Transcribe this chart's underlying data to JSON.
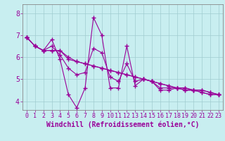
{
  "title": "",
  "xlabel": "Windchill (Refroidissement éolien,°C)",
  "ylabel": "",
  "bg_color": "#c8eef0",
  "grid_color": "#a0ccd0",
  "line_color": "#990099",
  "spine_color": "#888888",
  "xlim": [
    -0.5,
    23.5
  ],
  "ylim": [
    3.6,
    8.4
  ],
  "xticks": [
    0,
    1,
    2,
    3,
    4,
    5,
    6,
    7,
    8,
    9,
    10,
    11,
    12,
    13,
    14,
    15,
    16,
    17,
    18,
    19,
    20,
    21,
    22,
    23
  ],
  "yticks": [
    4,
    5,
    6,
    7,
    8
  ],
  "series": [
    [
      6.9,
      6.5,
      6.3,
      6.8,
      5.9,
      4.3,
      3.7,
      4.6,
      7.8,
      7.0,
      4.6,
      4.6,
      6.5,
      4.7,
      5.0,
      4.9,
      4.5,
      4.5,
      4.6,
      4.5,
      4.5,
      4.4,
      4.3,
      4.3
    ],
    [
      6.9,
      6.5,
      6.3,
      6.3,
      6.3,
      6.0,
      5.8,
      5.7,
      5.6,
      5.5,
      5.4,
      5.3,
      5.2,
      5.1,
      5.0,
      4.9,
      4.8,
      4.7,
      4.6,
      4.6,
      4.5,
      4.5,
      4.4,
      4.3
    ],
    [
      6.9,
      6.5,
      6.3,
      6.5,
      6.1,
      5.5,
      5.2,
      5.3,
      6.4,
      6.2,
      5.1,
      4.9,
      5.7,
      4.9,
      5.0,
      4.9,
      4.6,
      4.6,
      4.6,
      4.5,
      4.5,
      4.4,
      4.3,
      4.3
    ],
    [
      6.9,
      6.5,
      6.3,
      6.3,
      6.3,
      5.9,
      5.8,
      5.7,
      5.6,
      5.5,
      5.4,
      5.3,
      5.2,
      5.1,
      5.0,
      4.9,
      4.8,
      4.7,
      4.6,
      4.6,
      4.5,
      4.5,
      4.4,
      4.3
    ]
  ],
  "marker": "+",
  "markersize": 4,
  "linewidth": 0.8,
  "tick_fontsize": 6,
  "xlabel_fontsize": 7
}
